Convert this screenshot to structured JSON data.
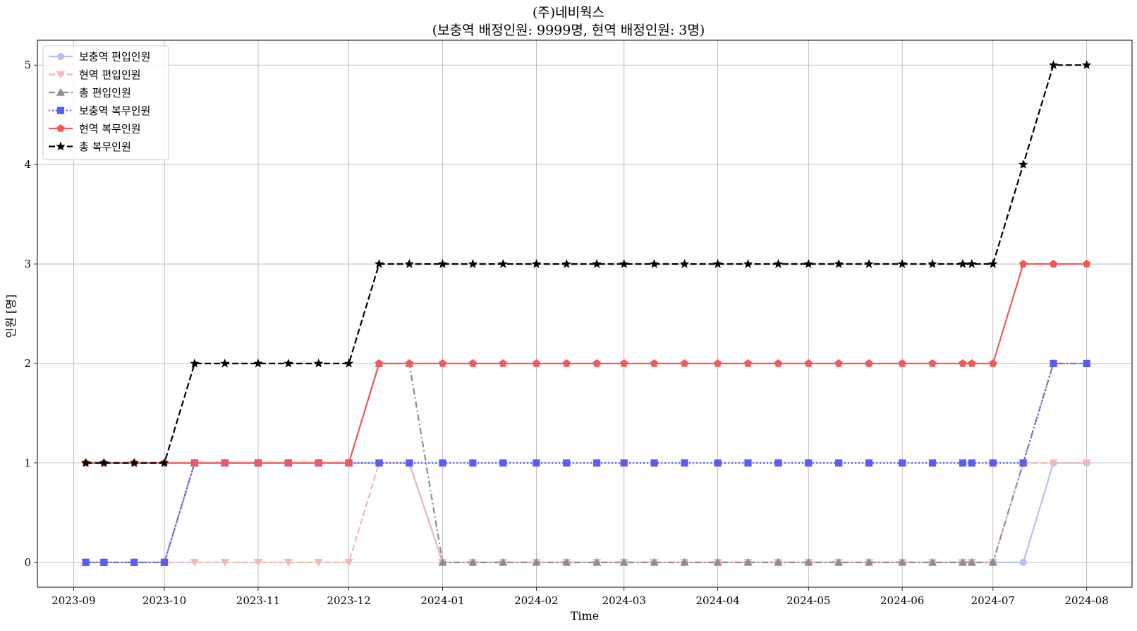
{
  "chart_data": {
    "type": "line",
    "title_line1": "(주)네비웍스",
    "title_line2": "(보충역 배정인원: 9999명, 현역 배정인원: 3명)",
    "xlabel": "Time",
    "ylabel": "인원 [명]",
    "grid": true,
    "legend_position": "top-left",
    "x_ticks": [
      "2023-09",
      "2023-10",
      "2023-11",
      "2023-12",
      "2024-01",
      "2024-02",
      "2024-03",
      "2024-04",
      "2024-05",
      "2024-06",
      "2024-07",
      "2024-08"
    ],
    "y_ticks": [
      0,
      1,
      2,
      3,
      4,
      5
    ],
    "ylim": [
      -0.25,
      5.25
    ],
    "xlim": [
      "2023-08-20",
      "2024-08-16"
    ],
    "x": [
      "2023-09-05",
      "2023-09-11",
      "2023-09-21",
      "2023-10-01",
      "2023-10-11",
      "2023-10-21",
      "2023-11-01",
      "2023-11-11",
      "2023-11-21",
      "2023-12-01",
      "2023-12-11",
      "2023-12-21",
      "2024-01-01",
      "2024-01-11",
      "2024-01-21",
      "2024-02-01",
      "2024-02-11",
      "2024-02-21",
      "2024-03-01",
      "2024-03-11",
      "2024-03-21",
      "2024-04-01",
      "2024-04-11",
      "2024-04-21",
      "2024-05-01",
      "2024-05-11",
      "2024-05-21",
      "2024-06-01",
      "2024-06-11",
      "2024-06-21",
      "2024-06-24",
      "2024-07-01",
      "2024-07-11",
      "2024-07-21",
      "2024-08-01"
    ],
    "series": [
      {
        "name": "보충역 편입인원",
        "color": "#b9bfee",
        "dash": "solid",
        "marker": "circle",
        "values": [
          0,
          0,
          0,
          0,
          1,
          1,
          1,
          1,
          1,
          1,
          1,
          1,
          0,
          0,
          0,
          0,
          0,
          0,
          0,
          0,
          0,
          0,
          0,
          0,
          0,
          0,
          0,
          0,
          0,
          0,
          0,
          0,
          0,
          1,
          1
        ]
      },
      {
        "name": "현역 편입인원",
        "color": "#f3b8b8",
        "dash": "dashed",
        "marker": "triangle-down",
        "values": [
          0,
          0,
          0,
          0,
          0,
          0,
          0,
          0,
          0,
          0,
          1,
          1,
          0,
          0,
          0,
          0,
          0,
          0,
          0,
          0,
          0,
          0,
          0,
          0,
          0,
          0,
          0,
          0,
          0,
          0,
          0,
          0,
          1,
          1,
          1
        ]
      },
      {
        "name": "총 편입인원",
        "color": "#8c8c8c",
        "dash": "dashdot",
        "marker": "triangle-up",
        "values": [
          0,
          0,
          0,
          0,
          1,
          1,
          1,
          1,
          1,
          1,
          2,
          2,
          0,
          0,
          0,
          0,
          0,
          0,
          0,
          0,
          0,
          0,
          0,
          0,
          0,
          0,
          0,
          0,
          0,
          0,
          0,
          0,
          1,
          2,
          2
        ]
      },
      {
        "name": "보충역 복무인원",
        "color": "#5b5bf5",
        "dash": "dotted",
        "marker": "square",
        "values": [
          0,
          0,
          0,
          0,
          1,
          1,
          1,
          1,
          1,
          1,
          1,
          1,
          1,
          1,
          1,
          1,
          1,
          1,
          1,
          1,
          1,
          1,
          1,
          1,
          1,
          1,
          1,
          1,
          1,
          1,
          1,
          1,
          1,
          2,
          2
        ]
      },
      {
        "name": "현역 복무인원",
        "color": "#f25a5a",
        "dash": "solid",
        "marker": "pentagon",
        "values": [
          1,
          1,
          1,
          1,
          1,
          1,
          1,
          1,
          1,
          1,
          2,
          2,
          2,
          2,
          2,
          2,
          2,
          2,
          2,
          2,
          2,
          2,
          2,
          2,
          2,
          2,
          2,
          2,
          2,
          2,
          2,
          2,
          3,
          3,
          3
        ]
      },
      {
        "name": "총 복무인원",
        "color": "#000000",
        "dash": "dashed",
        "marker": "star",
        "values": [
          1,
          1,
          1,
          1,
          2,
          2,
          2,
          2,
          2,
          2,
          3,
          3,
          3,
          3,
          3,
          3,
          3,
          3,
          3,
          3,
          3,
          3,
          3,
          3,
          3,
          3,
          3,
          3,
          3,
          3,
          3,
          3,
          4,
          5,
          5
        ]
      }
    ]
  }
}
